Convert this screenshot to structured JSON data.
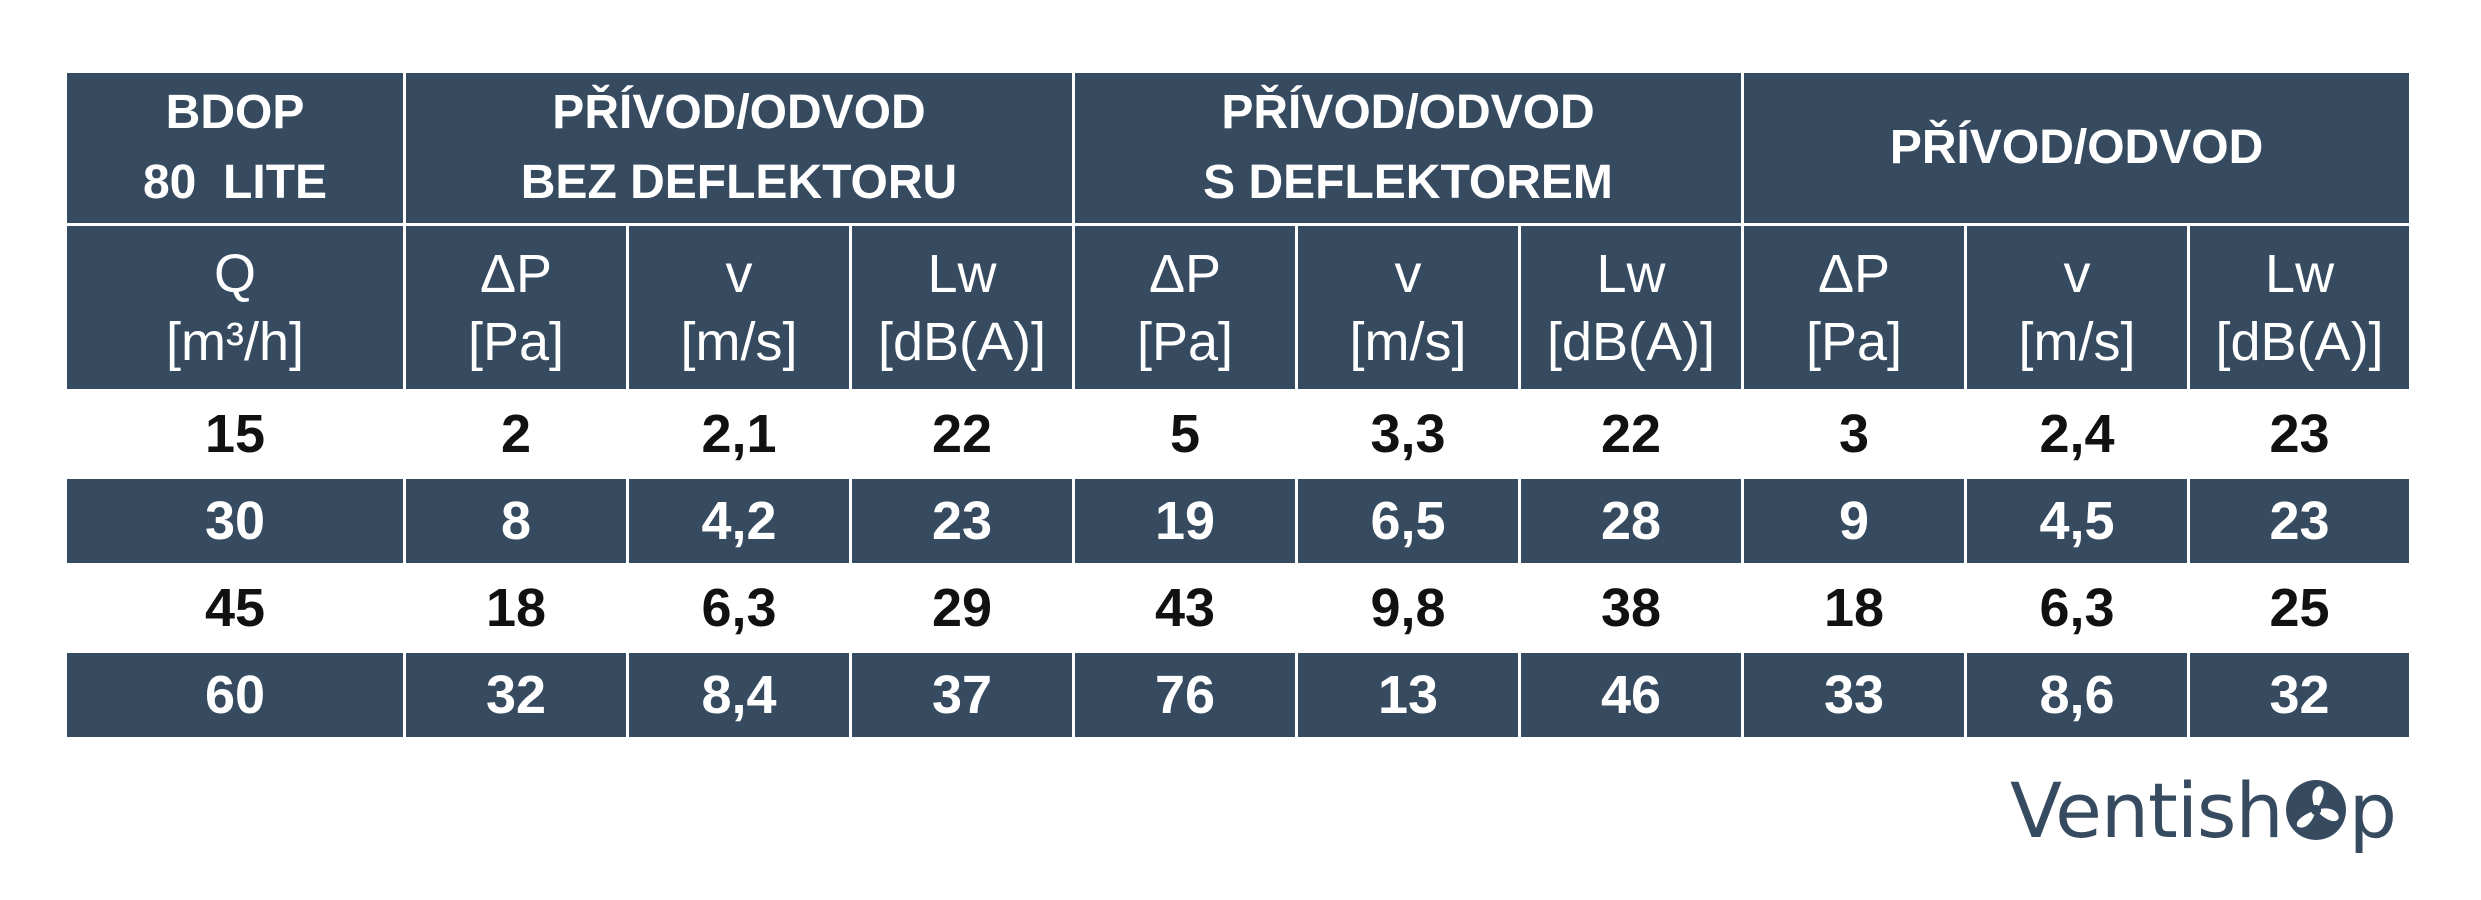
{
  "header_groups": {
    "model": [
      "BDOP",
      "80  LITE"
    ],
    "group1": [
      "PŘÍVOD/ODVOD",
      "BEZ DEFLEKTORU"
    ],
    "group2": [
      "PŘÍVOD/ODVOD",
      "S DEFLEKTOREM"
    ],
    "group3": [
      "PŘÍVOD/ODVOD"
    ]
  },
  "column_headers": [
    [
      "Q",
      "[m³/h]"
    ],
    [
      "ΔP",
      "[Pa]"
    ],
    [
      "v",
      "[m/s]"
    ],
    [
      "Lw",
      "[dB(A)]"
    ],
    [
      "ΔP",
      "[Pa]"
    ],
    [
      "v",
      "[m/s]"
    ],
    [
      "Lw",
      "[dB(A)]"
    ],
    [
      "ΔP",
      "[Pa]"
    ],
    [
      "v",
      "[m/s]"
    ],
    [
      "Lw",
      "[dB(A)]"
    ]
  ],
  "rows": [
    [
      "15",
      "2",
      "2,1",
      "22",
      "5",
      "3,3",
      "22",
      "3",
      "2,4",
      "23"
    ],
    [
      "30",
      "8",
      "4,2",
      "23",
      "19",
      "6,5",
      "28",
      "9",
      "4,5",
      "23"
    ],
    [
      "45",
      "18",
      "6,3",
      "29",
      "43",
      "9,8",
      "38",
      "18",
      "6,3",
      "25"
    ],
    [
      "60",
      "32",
      "8,4",
      "37",
      "76",
      "13",
      "46",
      "33",
      "8,6",
      "32"
    ]
  ],
  "logo": {
    "text_left": "Ventish",
    "text_right": "p",
    "icon": "fan-icon"
  },
  "colors": {
    "header_bg": "#364a60",
    "header_text": "#ffffff",
    "row_dark_bg": "#364a60",
    "row_light_bg": "#ffffff"
  }
}
